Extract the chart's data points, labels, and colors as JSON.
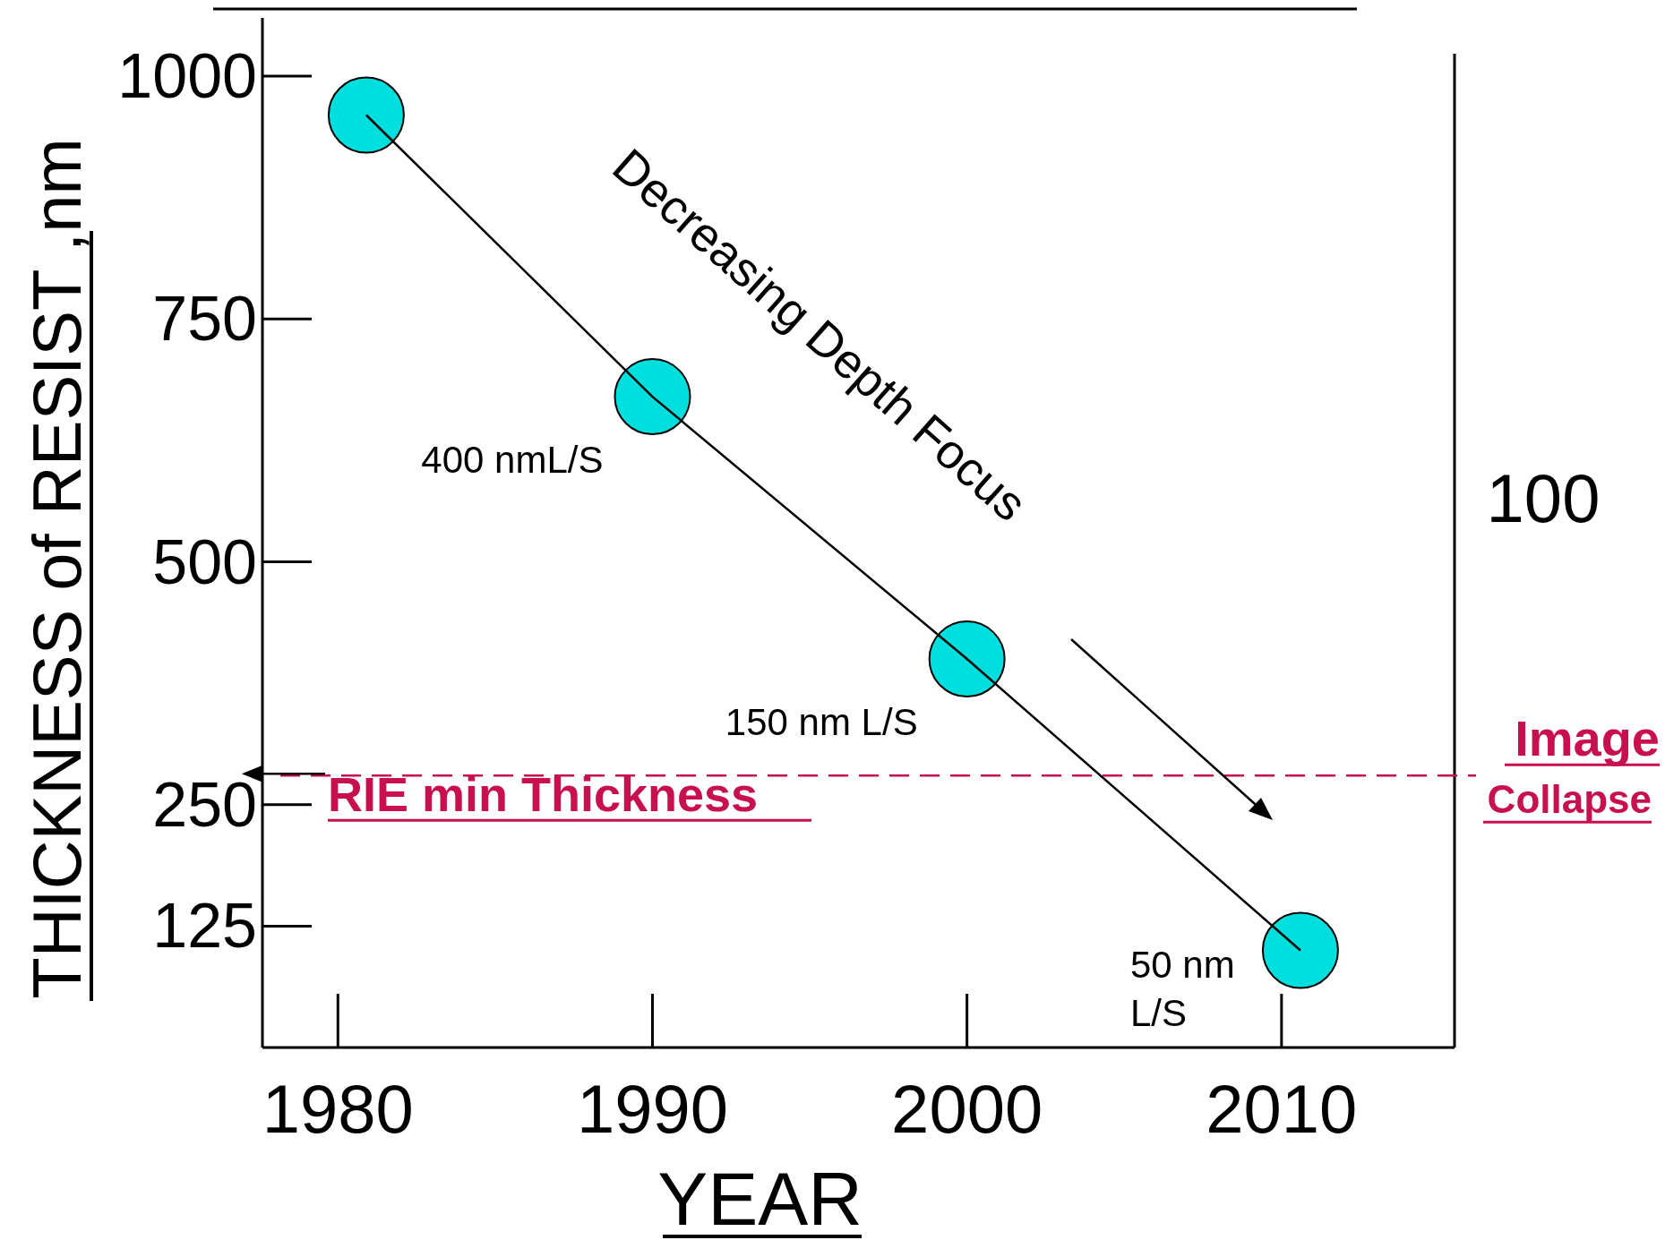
{
  "chart_data": {
    "type": "line",
    "xlabel": "YEAR",
    "ylabel": "THICKNESS of RESIST ,nm",
    "x": [
      1980.9,
      1990,
      2000,
      2010.6
    ],
    "series": [
      {
        "type": "scatter",
        "color": "#00dede",
        "values": [
          960,
          670,
          400,
          100
        ],
        "marker": "circle"
      },
      {
        "color": "#000000",
        "values": [
          960,
          670,
          400,
          100
        ],
        "line_style": "solid"
      }
    ],
    "xlim": [
      1977.6,
      2015.5
    ],
    "ylim": [
      0,
      1060
    ],
    "xticks": [
      1980,
      1990,
      2000,
      2010
    ],
    "yticks": [
      125,
      250,
      500,
      750,
      1000
    ],
    "grid": false,
    "ref_lines": [
      {
        "axis": "y",
        "value": 280,
        "label": "RIE min Thickness",
        "color": "#c8104f",
        "line_style": "dashed"
      }
    ],
    "annotations": [
      {
        "text": "400 nmL/S",
        "x": 1990,
        "y": 670
      },
      {
        "text": "150 nm L/S",
        "x": 2000,
        "y": 400
      },
      {
        "text": "50 nm\nL/S",
        "x": 2010.6,
        "y": 100
      },
      "Decreasing Depth Focus",
      "Image\nCollapse",
      "100"
    ]
  }
}
